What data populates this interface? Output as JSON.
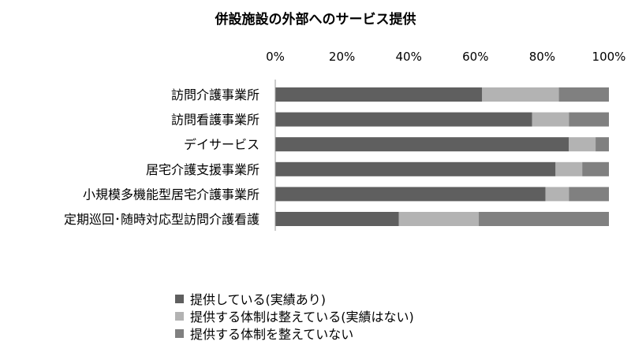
{
  "chart_data": {
    "type": "bar",
    "orientation": "horizontal",
    "stacked": "percent",
    "title": "併設施設の外部へのサービス提供",
    "categories": [
      "訪問介護事業所",
      "訪問看護事業所",
      "デイサービス",
      "居宅介護支援事業所",
      "小規模多機能型居宅介護事業所",
      "定期巡回･随時対応型訪問介護看護"
    ],
    "series": [
      {
        "name": "提供している(実績あり)",
        "color": "#5f5f5f",
        "values": [
          62,
          77,
          88,
          84,
          81,
          37
        ]
      },
      {
        "name": "提供する体制は整えている(実績はない)",
        "color": "#b3b3b3",
        "values": [
          23,
          11,
          8,
          8,
          7,
          24
        ]
      },
      {
        "name": "提供する体制を整えていない",
        "color": "#808080",
        "values": [
          15,
          12,
          4,
          8,
          12,
          39
        ]
      }
    ],
    "xlim": [
      0,
      100
    ],
    "x_ticks": [
      "0%",
      "20%",
      "40%",
      "60%",
      "80%",
      "100%"
    ],
    "x_axis_position": "top",
    "grid": false,
    "legend_position": "bottom"
  }
}
